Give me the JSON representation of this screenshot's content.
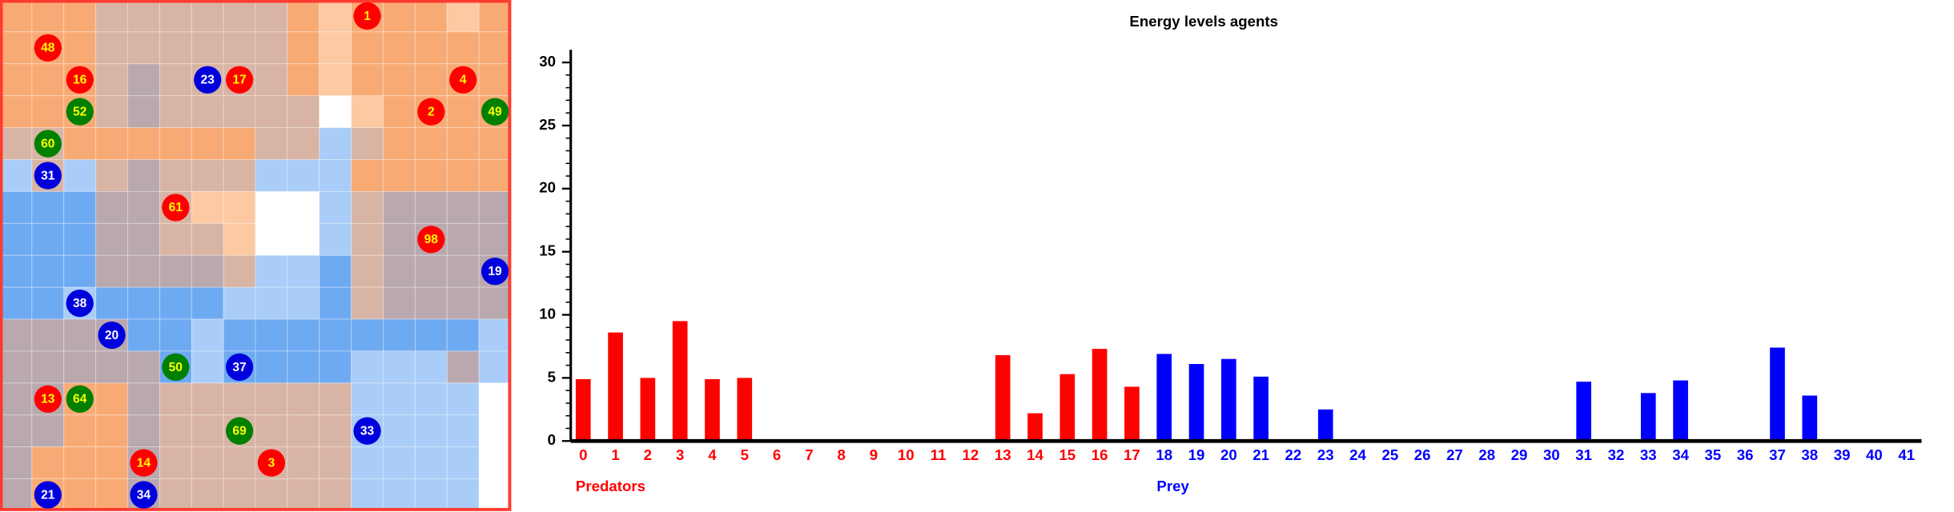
{
  "map": {
    "agents": [
      {
        "label": "1",
        "color": "#ff0000"
      },
      {
        "label": "48",
        "color": "#ff0000"
      },
      {
        "label": "16",
        "color": "#ff0000"
      },
      {
        "label": "23",
        "color": "#0000dd"
      },
      {
        "label": "17",
        "color": "#ff0000"
      },
      {
        "label": "4",
        "color": "#ff0000"
      },
      {
        "label": "2",
        "color": "#ff0000"
      },
      {
        "label": "49",
        "color": "#008000"
      },
      {
        "label": "52",
        "color": "#008000"
      },
      {
        "label": "60",
        "color": "#008000"
      },
      {
        "label": "31",
        "color": "#0000dd"
      },
      {
        "label": "61",
        "color": "#ff0000"
      },
      {
        "label": "98",
        "color": "#ff0000"
      },
      {
        "label": "19",
        "color": "#0000dd"
      },
      {
        "label": "38",
        "color": "#0000dd"
      },
      {
        "label": "20",
        "color": "#0000dd"
      },
      {
        "label": "50",
        "color": "#008000"
      },
      {
        "label": "37",
        "color": "#0000dd"
      },
      {
        "label": "13",
        "color": "#ff0000"
      },
      {
        "label": "64",
        "color": "#008000"
      },
      {
        "label": "69",
        "color": "#008000"
      },
      {
        "label": "33",
        "color": "#0000dd"
      },
      {
        "label": "14",
        "color": "#ff0000"
      },
      {
        "label": "3",
        "color": "#ff0000"
      },
      {
        "label": "21",
        "color": "#0000dd"
      },
      {
        "label": "34",
        "color": "#0000dd"
      }
    ]
  },
  "chart_data": {
    "type": "bar",
    "title": "Energy levels agents",
    "categories": [
      "0",
      "1",
      "2",
      "3",
      "4",
      "5",
      "6",
      "7",
      "8",
      "9",
      "10",
      "11",
      "12",
      "13",
      "14",
      "15",
      "16",
      "17",
      "18",
      "19",
      "20",
      "21",
      "22",
      "23",
      "24",
      "25",
      "26",
      "27",
      "28",
      "29",
      "30",
      "31",
      "32",
      "33",
      "34",
      "35",
      "36",
      "37",
      "38",
      "39",
      "40",
      "41"
    ],
    "series": [
      {
        "name": "Predators",
        "color": "#ff0000",
        "values": [
          4.9,
          8.6,
          5.0,
          9.5,
          4.9,
          5.0,
          0,
          0,
          0,
          0,
          0,
          0,
          0,
          6.8,
          2.2,
          5.3,
          7.3,
          4.3,
          null,
          null,
          null,
          null,
          null,
          null,
          null,
          null,
          null,
          null,
          null,
          null,
          null,
          null,
          null,
          null,
          null,
          null,
          null,
          null,
          null,
          null,
          null,
          null
        ]
      },
      {
        "name": "Prey",
        "color": "#0000ff",
        "values": [
          null,
          null,
          null,
          null,
          null,
          null,
          null,
          null,
          null,
          null,
          null,
          null,
          null,
          null,
          null,
          null,
          null,
          null,
          6.9,
          6.1,
          6.5,
          5.1,
          0,
          2.5,
          0,
          0,
          0,
          0,
          0,
          0,
          0,
          4.7,
          0,
          3.8,
          4.8,
          0,
          0,
          7.4,
          3.6,
          0,
          0,
          0
        ]
      }
    ],
    "ylim": [
      0,
      31
    ],
    "yticks": [
      0,
      5,
      10,
      15,
      20,
      25,
      30
    ]
  }
}
